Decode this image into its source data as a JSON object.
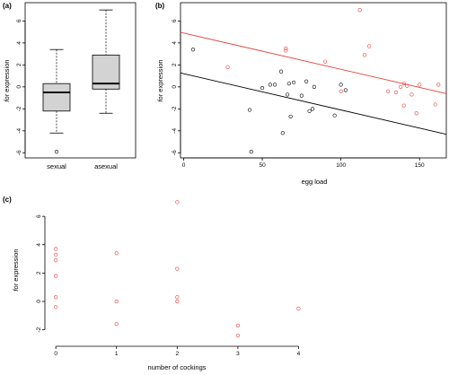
{
  "chart_data": [
    {
      "type": "boxplot",
      "panel_label": "(a)",
      "ylabel_italic": "for",
      "ylabel_rest": " expression",
      "categories": [
        "sexual",
        "asexual"
      ],
      "boxes": [
        {
          "category": "sexual",
          "whisker_low": -4.2,
          "q1": -2.2,
          "median": -0.5,
          "q3": 0.3,
          "whisker_high": 3.4,
          "outliers": [
            -5.9
          ]
        },
        {
          "category": "asexual",
          "whisker_low": -2.4,
          "q1": -0.2,
          "median": 0.3,
          "q3": 2.9,
          "whisker_high": 7.0,
          "outliers": []
        }
      ],
      "ylim": [
        -6.3,
        7.5
      ],
      "yticks": [
        -6,
        -4,
        -2,
        0,
        2,
        4,
        6
      ],
      "colors": {
        "box_fill": "#d3d3d3",
        "stroke": "#000000"
      }
    },
    {
      "type": "scatter",
      "panel_label": "(b)",
      "xlabel": "egg load",
      "ylabel_italic": "for",
      "ylabel_rest": " expression",
      "xlim": [
        -2,
        167
      ],
      "ylim": [
        -6.3,
        7.5
      ],
      "xticks": [
        0,
        50,
        100,
        150
      ],
      "yticks": [
        -6,
        -4,
        -2,
        0,
        2,
        4,
        6
      ],
      "series": [
        {
          "color": "#000000",
          "points": [
            [
              6,
              3.4
            ],
            [
              42,
              -2.1
            ],
            [
              43,
              -5.9
            ],
            [
              50,
              -0.1
            ],
            [
              55,
              0.2
            ],
            [
              58,
              0.2
            ],
            [
              62,
              1.4
            ],
            [
              63,
              -4.2
            ],
            [
              66,
              -0.7
            ],
            [
              67,
              0.3
            ],
            [
              68,
              -2.7
            ],
            [
              70,
              0.4
            ],
            [
              75,
              -0.8
            ],
            [
              78,
              0.5
            ],
            [
              80,
              -2.2
            ],
            [
              82,
              -2.0
            ],
            [
              83,
              0.0
            ],
            [
              96,
              -2.6
            ],
            [
              100,
              0.2
            ],
            [
              103,
              -0.3
            ]
          ],
          "fit": {
            "intercept": 1.2,
            "slope": -0.033
          }
        },
        {
          "color": "#e8403a",
          "points": [
            [
              28,
              1.8
            ],
            [
              65,
              3.5
            ],
            [
              65,
              3.3
            ],
            [
              90,
              2.3
            ],
            [
              100,
              -0.4
            ],
            [
              112,
              7.0
            ],
            [
              115,
              2.9
            ],
            [
              118,
              3.7
            ],
            [
              130,
              -0.4
            ],
            [
              135,
              -0.5
            ],
            [
              138,
              0.0
            ],
            [
              140,
              0.3
            ],
            [
              140,
              -1.7
            ],
            [
              142,
              0.1
            ],
            [
              145,
              -0.7
            ],
            [
              148,
              -2.4
            ],
            [
              150,
              0.2
            ],
            [
              160,
              -1.6
            ],
            [
              162,
              0.2
            ]
          ],
          "fit": {
            "intercept": 4.9,
            "slope": -0.033
          }
        }
      ]
    },
    {
      "type": "scatter",
      "panel_label": "(c)",
      "xlabel": "number of cockings",
      "ylabel_italic": "for",
      "ylabel_rest": " expression",
      "xlim": [
        -0.15,
        4.2
      ],
      "ylim": [
        -3.1,
        7.4
      ],
      "xticks": [
        0,
        1,
        2,
        3,
        4
      ],
      "yticks": [
        -2,
        0,
        2,
        4,
        6
      ],
      "series": [
        {
          "color": "#e8403a",
          "points": [
            [
              0,
              3.7
            ],
            [
              0,
              3.3
            ],
            [
              0,
              2.9
            ],
            [
              0,
              1.8
            ],
            [
              0,
              0.3
            ],
            [
              0,
              -0.4
            ],
            [
              1,
              3.4
            ],
            [
              1,
              0.0
            ],
            [
              1,
              -1.6
            ],
            [
              2,
              7.0
            ],
            [
              2,
              2.3
            ],
            [
              2,
              0.3
            ],
            [
              2,
              0.0
            ],
            [
              3,
              -1.7
            ],
            [
              3,
              -2.4
            ],
            [
              4,
              -0.5
            ]
          ]
        }
      ]
    }
  ]
}
